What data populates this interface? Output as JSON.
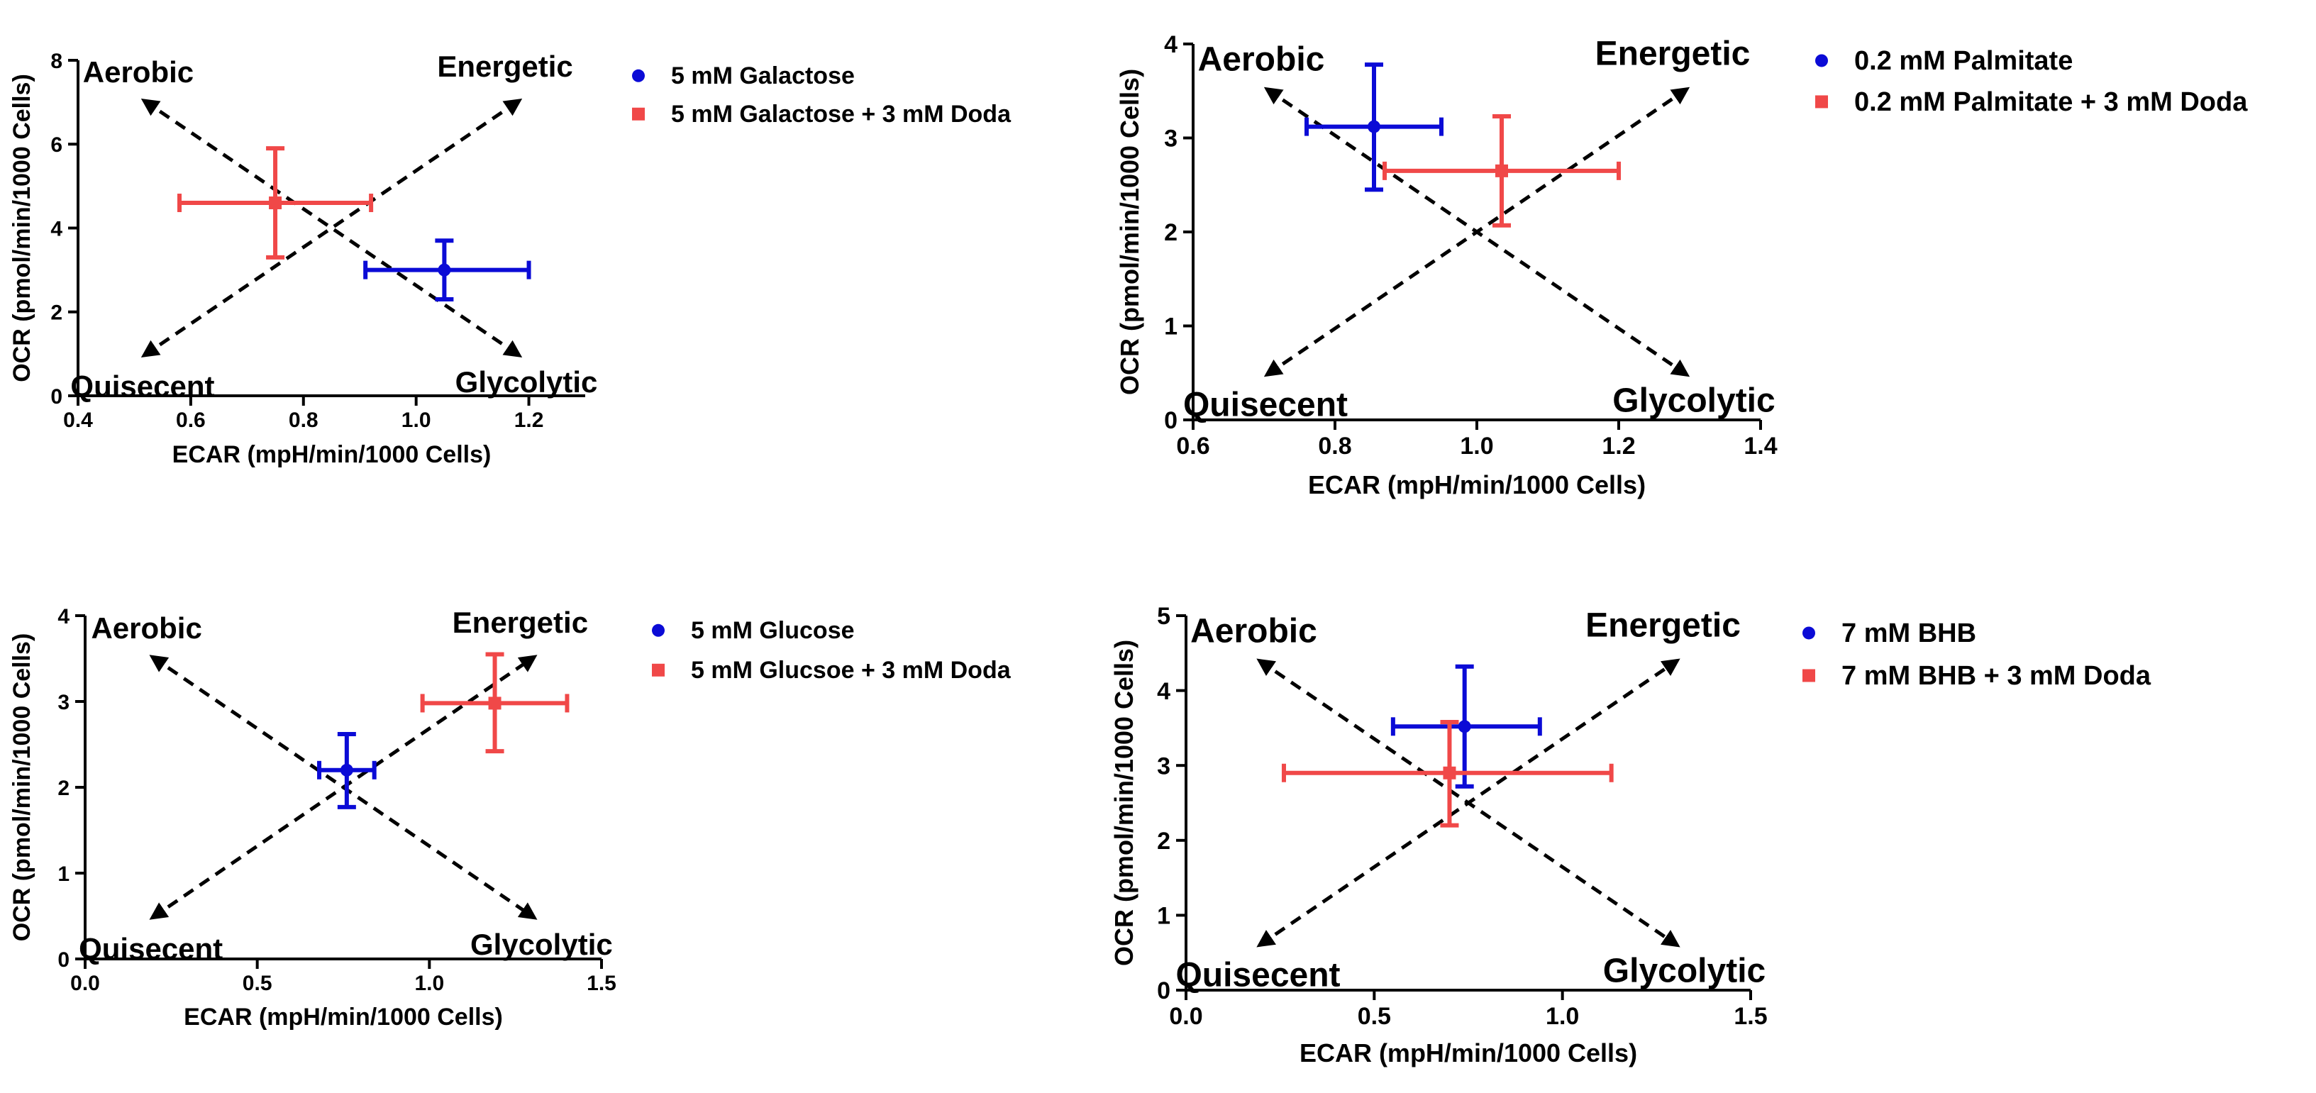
{
  "colors": {
    "series1": "#0b0bd6",
    "series2": "#f04848",
    "axis": "#000000",
    "arrow": "#000000"
  },
  "chart_data": [
    {
      "type": "scatter",
      "xlabel": "ECAR (mpH/min/1000 Cells)",
      "ylabel": "OCR (pmol/min/1000 Cells)",
      "xlim": [
        0.4,
        1.3
      ],
      "ylim": [
        0,
        8
      ],
      "xticks": [
        "0.4",
        "0.6",
        "0.8",
        "1.0",
        "1.2"
      ],
      "yticks": [
        "0",
        "2",
        "4",
        "6",
        "8"
      ],
      "quadrants": {
        "top_left": "Aerobic",
        "top_right": "Energetic",
        "bottom_left": "Quisecent",
        "bottom_right": "Glycolytic"
      },
      "series": [
        {
          "name": "5 mM Galactose",
          "marker": "circle",
          "x": 1.05,
          "y": 3.0,
          "xerr_low": 0.91,
          "xerr_high": 1.2,
          "yerr_low": 2.3,
          "yerr_high": 3.7
        },
        {
          "name": "5 mM Galactose + 3 mM Doda",
          "marker": "square",
          "x": 0.75,
          "y": 4.6,
          "xerr_low": 0.58,
          "xerr_high": 0.92,
          "yerr_low": 3.3,
          "yerr_high": 5.9
        }
      ]
    },
    {
      "type": "scatter",
      "xlabel": "ECAR (mpH/min/1000 Cells)",
      "ylabel": "OCR (pmol/min/1000 Cells)",
      "xlim": [
        0.6,
        1.4
      ],
      "ylim": [
        0,
        4
      ],
      "xticks": [
        "0.6",
        "0.8",
        "1.0",
        "1.2",
        "1.4"
      ],
      "yticks": [
        "0",
        "1",
        "2",
        "3",
        "4"
      ],
      "quadrants": {
        "top_left": "Aerobic",
        "top_right": "Energetic",
        "bottom_left": "Quisecent",
        "bottom_right": "Glycolytic"
      },
      "series": [
        {
          "name": "0.2 mM Palmitate",
          "marker": "circle",
          "x": 0.855,
          "y": 3.12,
          "xerr_low": 0.76,
          "xerr_high": 0.95,
          "yerr_low": 2.45,
          "yerr_high": 3.78
        },
        {
          "name": "0.2 mM Palmitate + 3 mM Doda",
          "marker": "square",
          "x": 1.035,
          "y": 2.65,
          "xerr_low": 0.87,
          "xerr_high": 1.2,
          "yerr_low": 2.07,
          "yerr_high": 3.23
        }
      ]
    },
    {
      "type": "scatter",
      "xlabel": "ECAR (mpH/min/1000 Cells)",
      "ylabel": "OCR (pmol/min/1000 Cells)",
      "xlim": [
        0,
        1.5
      ],
      "ylim": [
        0,
        4
      ],
      "xticks": [
        "0.0",
        "0.5",
        "1.0",
        "1.5"
      ],
      "yticks": [
        "0",
        "1",
        "2",
        "3",
        "4"
      ],
      "quadrants": {
        "top_left": "Aerobic",
        "top_right": "Energetic",
        "bottom_left": "Quisecent",
        "bottom_right": "Glycolytic"
      },
      "series": [
        {
          "name": "5 mM Glucose",
          "marker": "circle",
          "x": 0.76,
          "y": 2.2,
          "xerr_low": 0.68,
          "xerr_high": 0.84,
          "yerr_low": 1.77,
          "yerr_high": 2.62
        },
        {
          "name": "5 mM Glucsoe + 3 mM Doda",
          "marker": "square",
          "x": 1.19,
          "y": 2.98,
          "xerr_low": 0.98,
          "xerr_high": 1.4,
          "yerr_low": 2.42,
          "yerr_high": 3.55
        }
      ]
    },
    {
      "type": "scatter",
      "xlabel": "ECAR (mpH/min/1000 Cells)",
      "ylabel": "OCR (pmol/min/1000 Cells)",
      "xlim": [
        0,
        1.5
      ],
      "ylim": [
        0,
        5
      ],
      "xticks": [
        "0.0",
        "0.5",
        "1.0",
        "1.5"
      ],
      "yticks": [
        "0",
        "1",
        "2",
        "3",
        "4",
        "5"
      ],
      "quadrants": {
        "top_left": "Aerobic",
        "top_right": "Energetic",
        "bottom_left": "Quisecent",
        "bottom_right": "Glycolytic"
      },
      "series": [
        {
          "name": "7 mM BHB",
          "marker": "circle",
          "x": 0.74,
          "y": 3.52,
          "xerr_low": 0.55,
          "xerr_high": 0.94,
          "yerr_low": 2.72,
          "yerr_high": 4.32
        },
        {
          "name": "7 mM BHB + 3 mM Doda",
          "marker": "square",
          "x": 0.7,
          "y": 2.9,
          "xerr_low": 0.26,
          "xerr_high": 1.13,
          "yerr_low": 2.2,
          "yerr_high": 3.58
        }
      ]
    }
  ]
}
